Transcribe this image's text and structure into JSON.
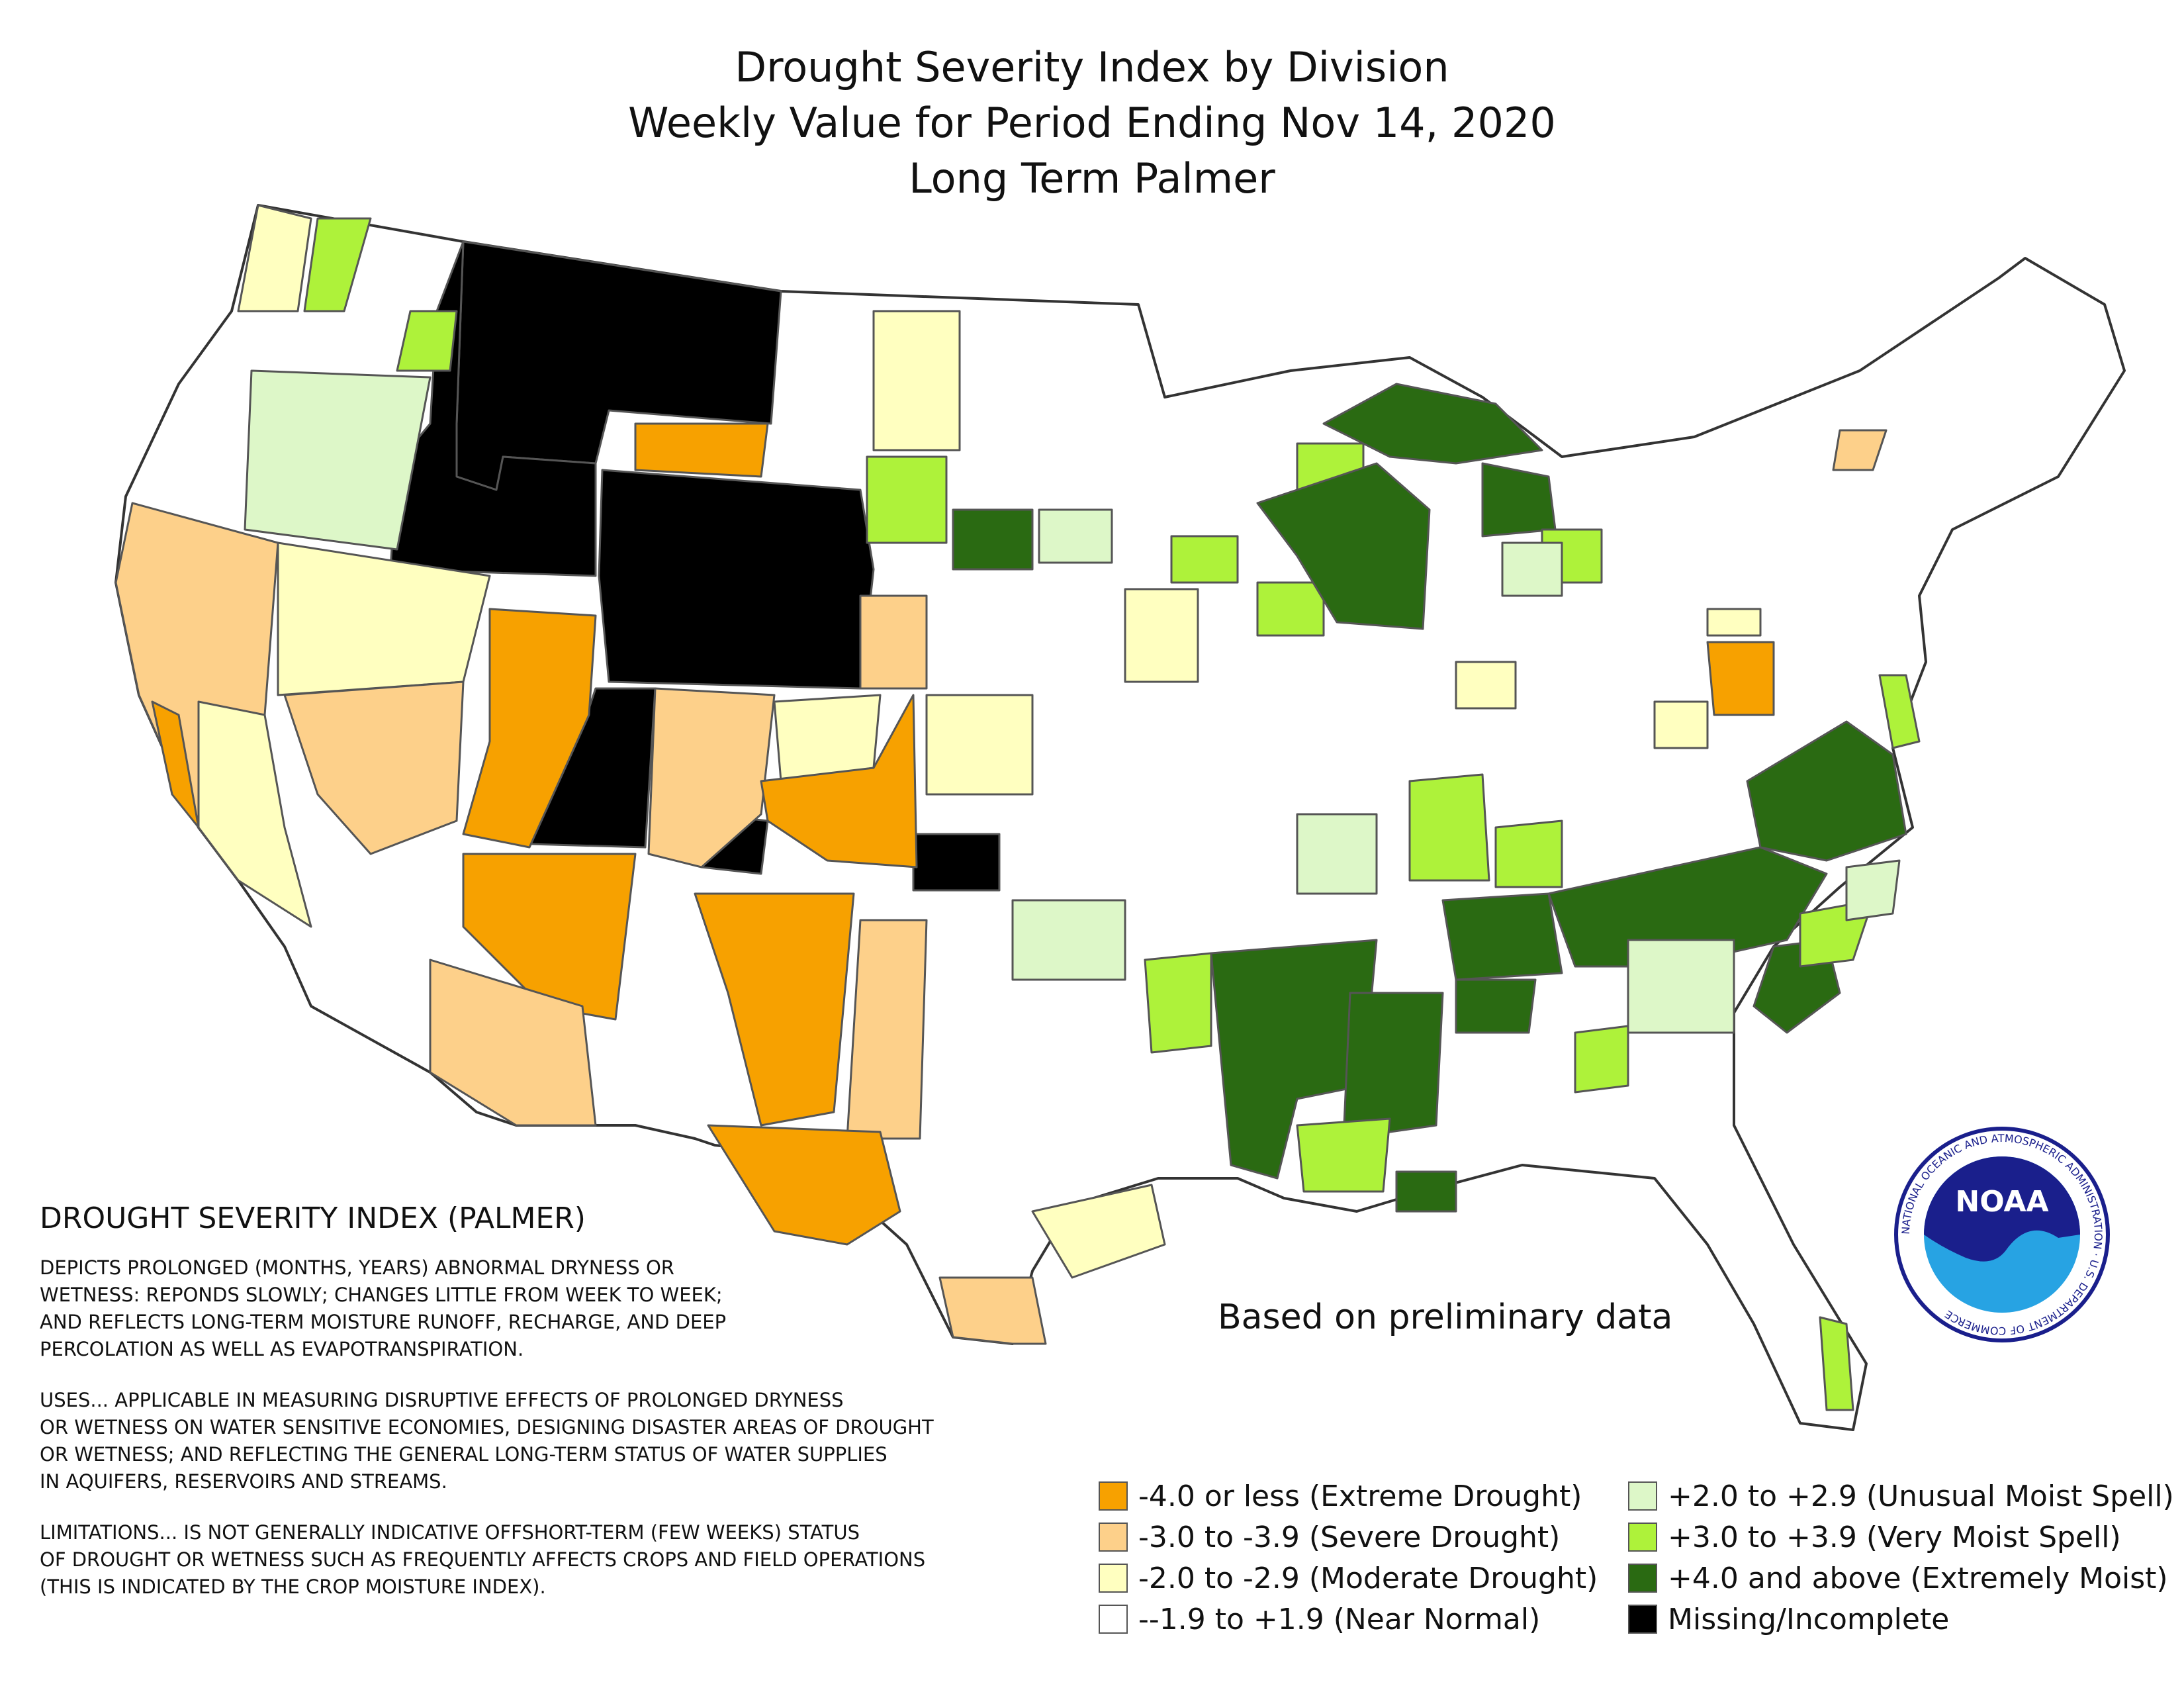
{
  "title": {
    "line1": "Drought Severity Index by Division",
    "line2": "Weekly Value for Period Ending Nov 14, 2020",
    "line3": "Long Term Palmer"
  },
  "note": "Based on preliminary data",
  "explanation": {
    "heading": "DROUGHT SEVERITY INDEX (PALMER)",
    "paragraph1": [
      "DEPICTS PROLONGED (MONTHS, YEARS) ABNORMAL DRYNESS OR",
      "WETNESS: REPONDS SLOWLY; CHANGES LITTLE FROM WEEK TO WEEK;",
      "AND REFLECTS LONG-TERM MOISTURE RUNOFF, RECHARGE, AND DEEP",
      "PERCOLATION AS WELL AS EVAPOTRANSPIRATION."
    ],
    "paragraph2": [
      "USES... APPLICABLE IN MEASURING DISRUPTIVE EFFECTS OF PROLONGED DRYNESS",
      "OR WETNESS ON WATER SENSITIVE ECONOMIES, DESIGNING DISASTER AREAS OF DROUGHT",
      "OR WETNESS; AND REFLECTING THE GENERAL LONG-TERM STATUS OF WATER SUPPLIES",
      "IN AQUIFERS, RESERVOIRS AND STREAMS."
    ],
    "paragraph3": [
      "LIMITATIONS... IS NOT GENERALLY INDICATIVE OFFSHORT-TERM (FEW WEEKS) STATUS",
      "OF DROUGHT OR WETNESS SUCH AS FREQUENTLY AFFECTS CROPS AND FIELD OPERATIONS",
      "(THIS IS INDICATED BY THE CROP MOISTURE INDEX)."
    ]
  },
  "legend": {
    "items": [
      {
        "label": "-4.0 or less (Extreme Drought)",
        "color": "#f7a100"
      },
      {
        "label": "-3.0 to -3.9 (Severe Drought)",
        "color": "#fdd08a"
      },
      {
        "label": "-2.0 to -2.9 (Moderate Drought)",
        "color": "#ffffc0"
      },
      {
        "label": "--1.9 to +1.9 (Near Normal)",
        "color": "#ffffff"
      },
      {
        "label": "+2.0 to +2.9 (Unusual Moist Spell)",
        "color": "#ddf7c8"
      },
      {
        "label": "+3.0 to +3.9 (Very Moist Spell)",
        "color": "#aef23a"
      },
      {
        "label": "+4.0 and above (Extremely Moist)",
        "color": "#2a6a12"
      },
      {
        "label": "Missing/Incomplete",
        "color": "#000000"
      }
    ]
  },
  "logo": {
    "text": "NOAA",
    "ring_text": "NATIONAL OCEANIC AND ATMOSPHERIC ADMINISTRATION · U.S. DEPARTMENT OF COMMERCE",
    "colors": {
      "navy": "#1a1f8c",
      "sky": "#27a3e3"
    }
  }
}
